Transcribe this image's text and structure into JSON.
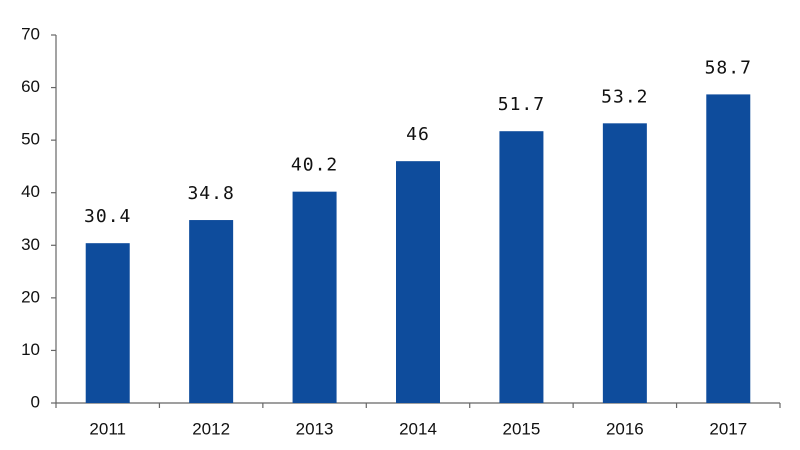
{
  "chart_data": {
    "type": "bar",
    "categories": [
      "2011",
      "2012",
      "2013",
      "2014",
      "2015",
      "2016",
      "2017"
    ],
    "values": [
      30.4,
      34.8,
      40.2,
      46,
      51.7,
      53.2,
      58.7
    ],
    "color": "#0e4c9c",
    "ylim": [
      0,
      70
    ],
    "yticks": [
      0,
      10,
      20,
      30,
      40,
      50,
      60,
      70
    ],
    "grid": false
  }
}
